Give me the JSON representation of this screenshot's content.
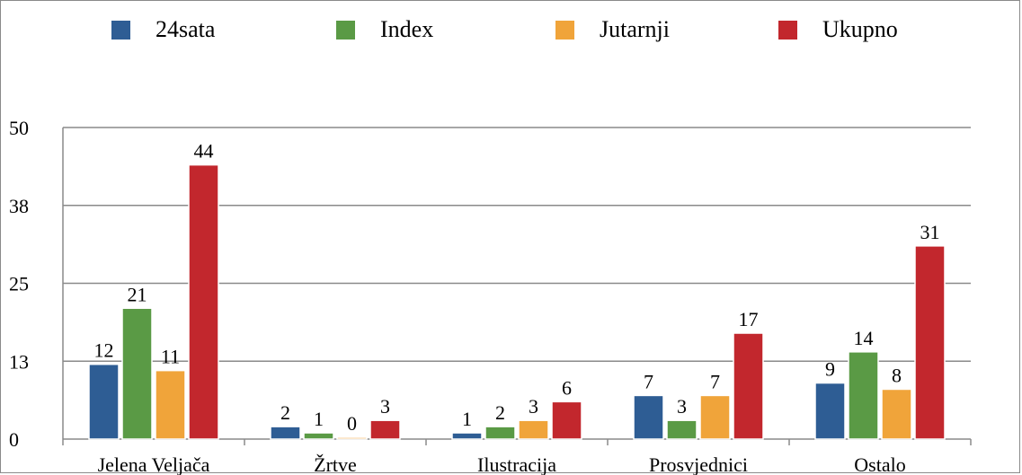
{
  "chart_data": {
    "type": "bar",
    "categories": [
      "Jelena Veljača",
      "Žrtve",
      "Ilustracija",
      "Prosvjednici",
      "Ostalo"
    ],
    "series": [
      {
        "name": "24sata",
        "color": "#2e5d94",
        "values": [
          12,
          2,
          1,
          7,
          9
        ],
        "labels": [
          "12",
          "2",
          "1",
          "7",
          "9"
        ]
      },
      {
        "name": "Index",
        "color": "#5a9a45",
        "values": [
          21,
          1,
          2,
          3,
          14
        ],
        "labels": [
          "21",
          "1",
          "2",
          "3",
          "14"
        ]
      },
      {
        "name": "Jutarnji",
        "color": "#f0a43a",
        "values": [
          11,
          0,
          3,
          7,
          8
        ],
        "labels": [
          "11",
          "0",
          "3",
          "7",
          "8"
        ]
      },
      {
        "name": "Ukupno",
        "color": "#c2272d",
        "values": [
          44,
          3,
          6,
          17,
          31
        ],
        "labels": [
          "44",
          "3",
          "6",
          "17",
          "31"
        ]
      }
    ],
    "y_ticks": [
      0,
      12.5,
      25,
      37.5,
      50
    ],
    "y_tick_labels": [
      "0",
      "13",
      "25",
      "38",
      "50"
    ],
    "ylim": [
      0,
      50
    ],
    "grid": true,
    "legend_position": "top"
  }
}
